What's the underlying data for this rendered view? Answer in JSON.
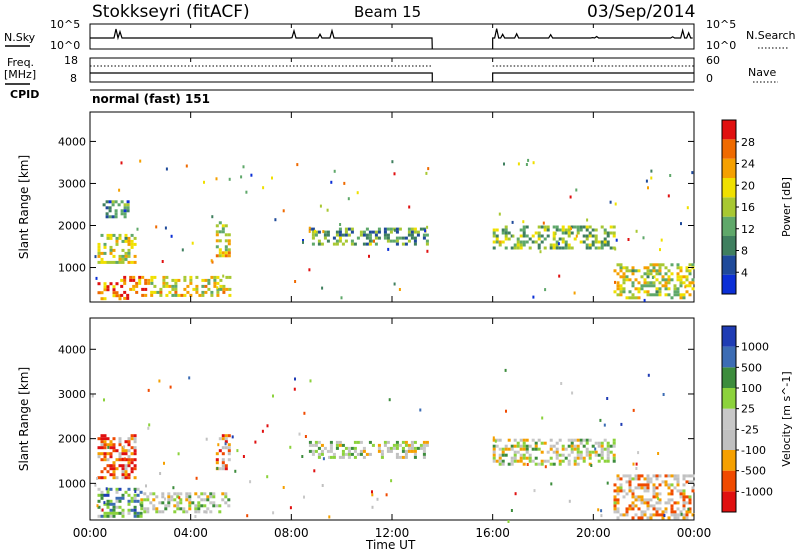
{
  "header": {
    "station": "Stokkseyri (fitACF)",
    "beam": "Beam 15",
    "date": "03/Sep/2014"
  },
  "strips": {
    "nsky": {
      "label": "N.Sky",
      "ticks_left": [
        "10^5",
        "10^0"
      ]
    },
    "nsearch": {
      "label": "N.Search",
      "ticks_right": [
        "10^5",
        "10^0"
      ]
    },
    "freq": {
      "label_line1": "Freq.",
      "label_line2": "[MHz]",
      "ticks_left": [
        "18",
        "8"
      ]
    },
    "nave": {
      "label": "Nave",
      "ticks_right": [
        "60",
        "0"
      ]
    },
    "cpid": {
      "label": "CPID",
      "value": "normal (fast) 151"
    }
  },
  "colors": {
    "power_scale": [
      "#0b2fd6",
      "#1f4a9a",
      "#3f7f5f",
      "#5fa86a",
      "#a8c832",
      "#f0e000",
      "#f5a000",
      "#ef6a00",
      "#e01010"
    ],
    "velocity_scale": [
      "#e01010",
      "#f04a00",
      "#f5a000",
      "#c0c0c0",
      "#c8c8c8",
      "#8cd23c",
      "#3c8c3c",
      "#3c6cb4",
      "#1f3cb4"
    ]
  },
  "chart_data": [
    {
      "type": "heatmap",
      "title": "",
      "xlabel": "Time UT",
      "ylabel": "Slant Range [km]",
      "x_ticks": [
        "00:00",
        "04:00",
        "08:00",
        "12:00",
        "16:00",
        "20:00",
        "00:00"
      ],
      "y_ticks": [
        "1000",
        "2000",
        "3000",
        "4000"
      ],
      "x_range_hours": [
        0,
        24
      ],
      "y_range_km": [
        180,
        4700
      ],
      "colorbar": {
        "label": "Power [dB]",
        "ticks": [
          "28",
          "24",
          "20",
          "16",
          "12",
          "8",
          "4"
        ],
        "range": [
          0,
          32
        ]
      },
      "regions": [
        {
          "t0": 0.3,
          "t1": 1.8,
          "r0": 1150,
          "r1": 1800,
          "level": 0.55
        },
        {
          "t0": 0.3,
          "t1": 1.2,
          "r0": 250,
          "r1": 650,
          "level": 0.75
        },
        {
          "t0": 1.2,
          "t1": 2.4,
          "r0": 300,
          "r1": 800,
          "level": 0.8
        },
        {
          "t0": 2.4,
          "t1": 5.5,
          "r0": 350,
          "r1": 800,
          "level": 0.6
        },
        {
          "t0": 0.5,
          "t1": 1.5,
          "r0": 2200,
          "r1": 2600,
          "level": 0.25
        },
        {
          "t0": 5.0,
          "t1": 5.5,
          "r0": 1300,
          "r1": 2100,
          "level": 0.6
        },
        {
          "t0": 8.7,
          "t1": 13.4,
          "r0": 1550,
          "r1": 1950,
          "level": 0.35
        },
        {
          "t0": 16.0,
          "t1": 20.8,
          "r0": 1450,
          "r1": 2000,
          "level": 0.45
        },
        {
          "t0": 20.8,
          "t1": 24.0,
          "r0": 250,
          "r1": 1100,
          "level": 0.55
        }
      ]
    },
    {
      "type": "heatmap",
      "title": "",
      "xlabel": "Time UT",
      "ylabel": "Slant Range [km]",
      "x_ticks": [
        "00:00",
        "04:00",
        "08:00",
        "12:00",
        "16:00",
        "20:00",
        "00:00"
      ],
      "y_ticks": [
        "1000",
        "2000",
        "3000",
        "4000"
      ],
      "x_range_hours": [
        0,
        24
      ],
      "y_range_km": [
        180,
        4700
      ],
      "colorbar": {
        "label": "Velocity [m s^-1]",
        "ticks": [
          "1000",
          "500",
          "100",
          "25",
          "-25",
          "-100",
          "-500",
          "-1000"
        ],
        "range": [
          -1200,
          1200
        ]
      },
      "regions": [
        {
          "t0": 0.3,
          "t1": 1.8,
          "r0": 1150,
          "r1": 2100,
          "level": 0.2
        },
        {
          "t0": 0.3,
          "t1": 2.0,
          "r0": 250,
          "r1": 900,
          "level": 0.7
        },
        {
          "t0": 2.0,
          "t1": 5.5,
          "r0": 350,
          "r1": 800,
          "level": 0.5
        },
        {
          "t0": 5.0,
          "t1": 5.5,
          "r0": 1300,
          "r1": 2100,
          "level": 0.25
        },
        {
          "t0": 8.7,
          "t1": 13.4,
          "r0": 1550,
          "r1": 1950,
          "level": 0.5
        },
        {
          "t0": 16.0,
          "t1": 20.8,
          "r0": 1450,
          "r1": 2000,
          "level": 0.5
        },
        {
          "t0": 20.8,
          "t1": 24.0,
          "r0": 250,
          "r1": 1200,
          "level": 0.35
        }
      ]
    }
  ]
}
